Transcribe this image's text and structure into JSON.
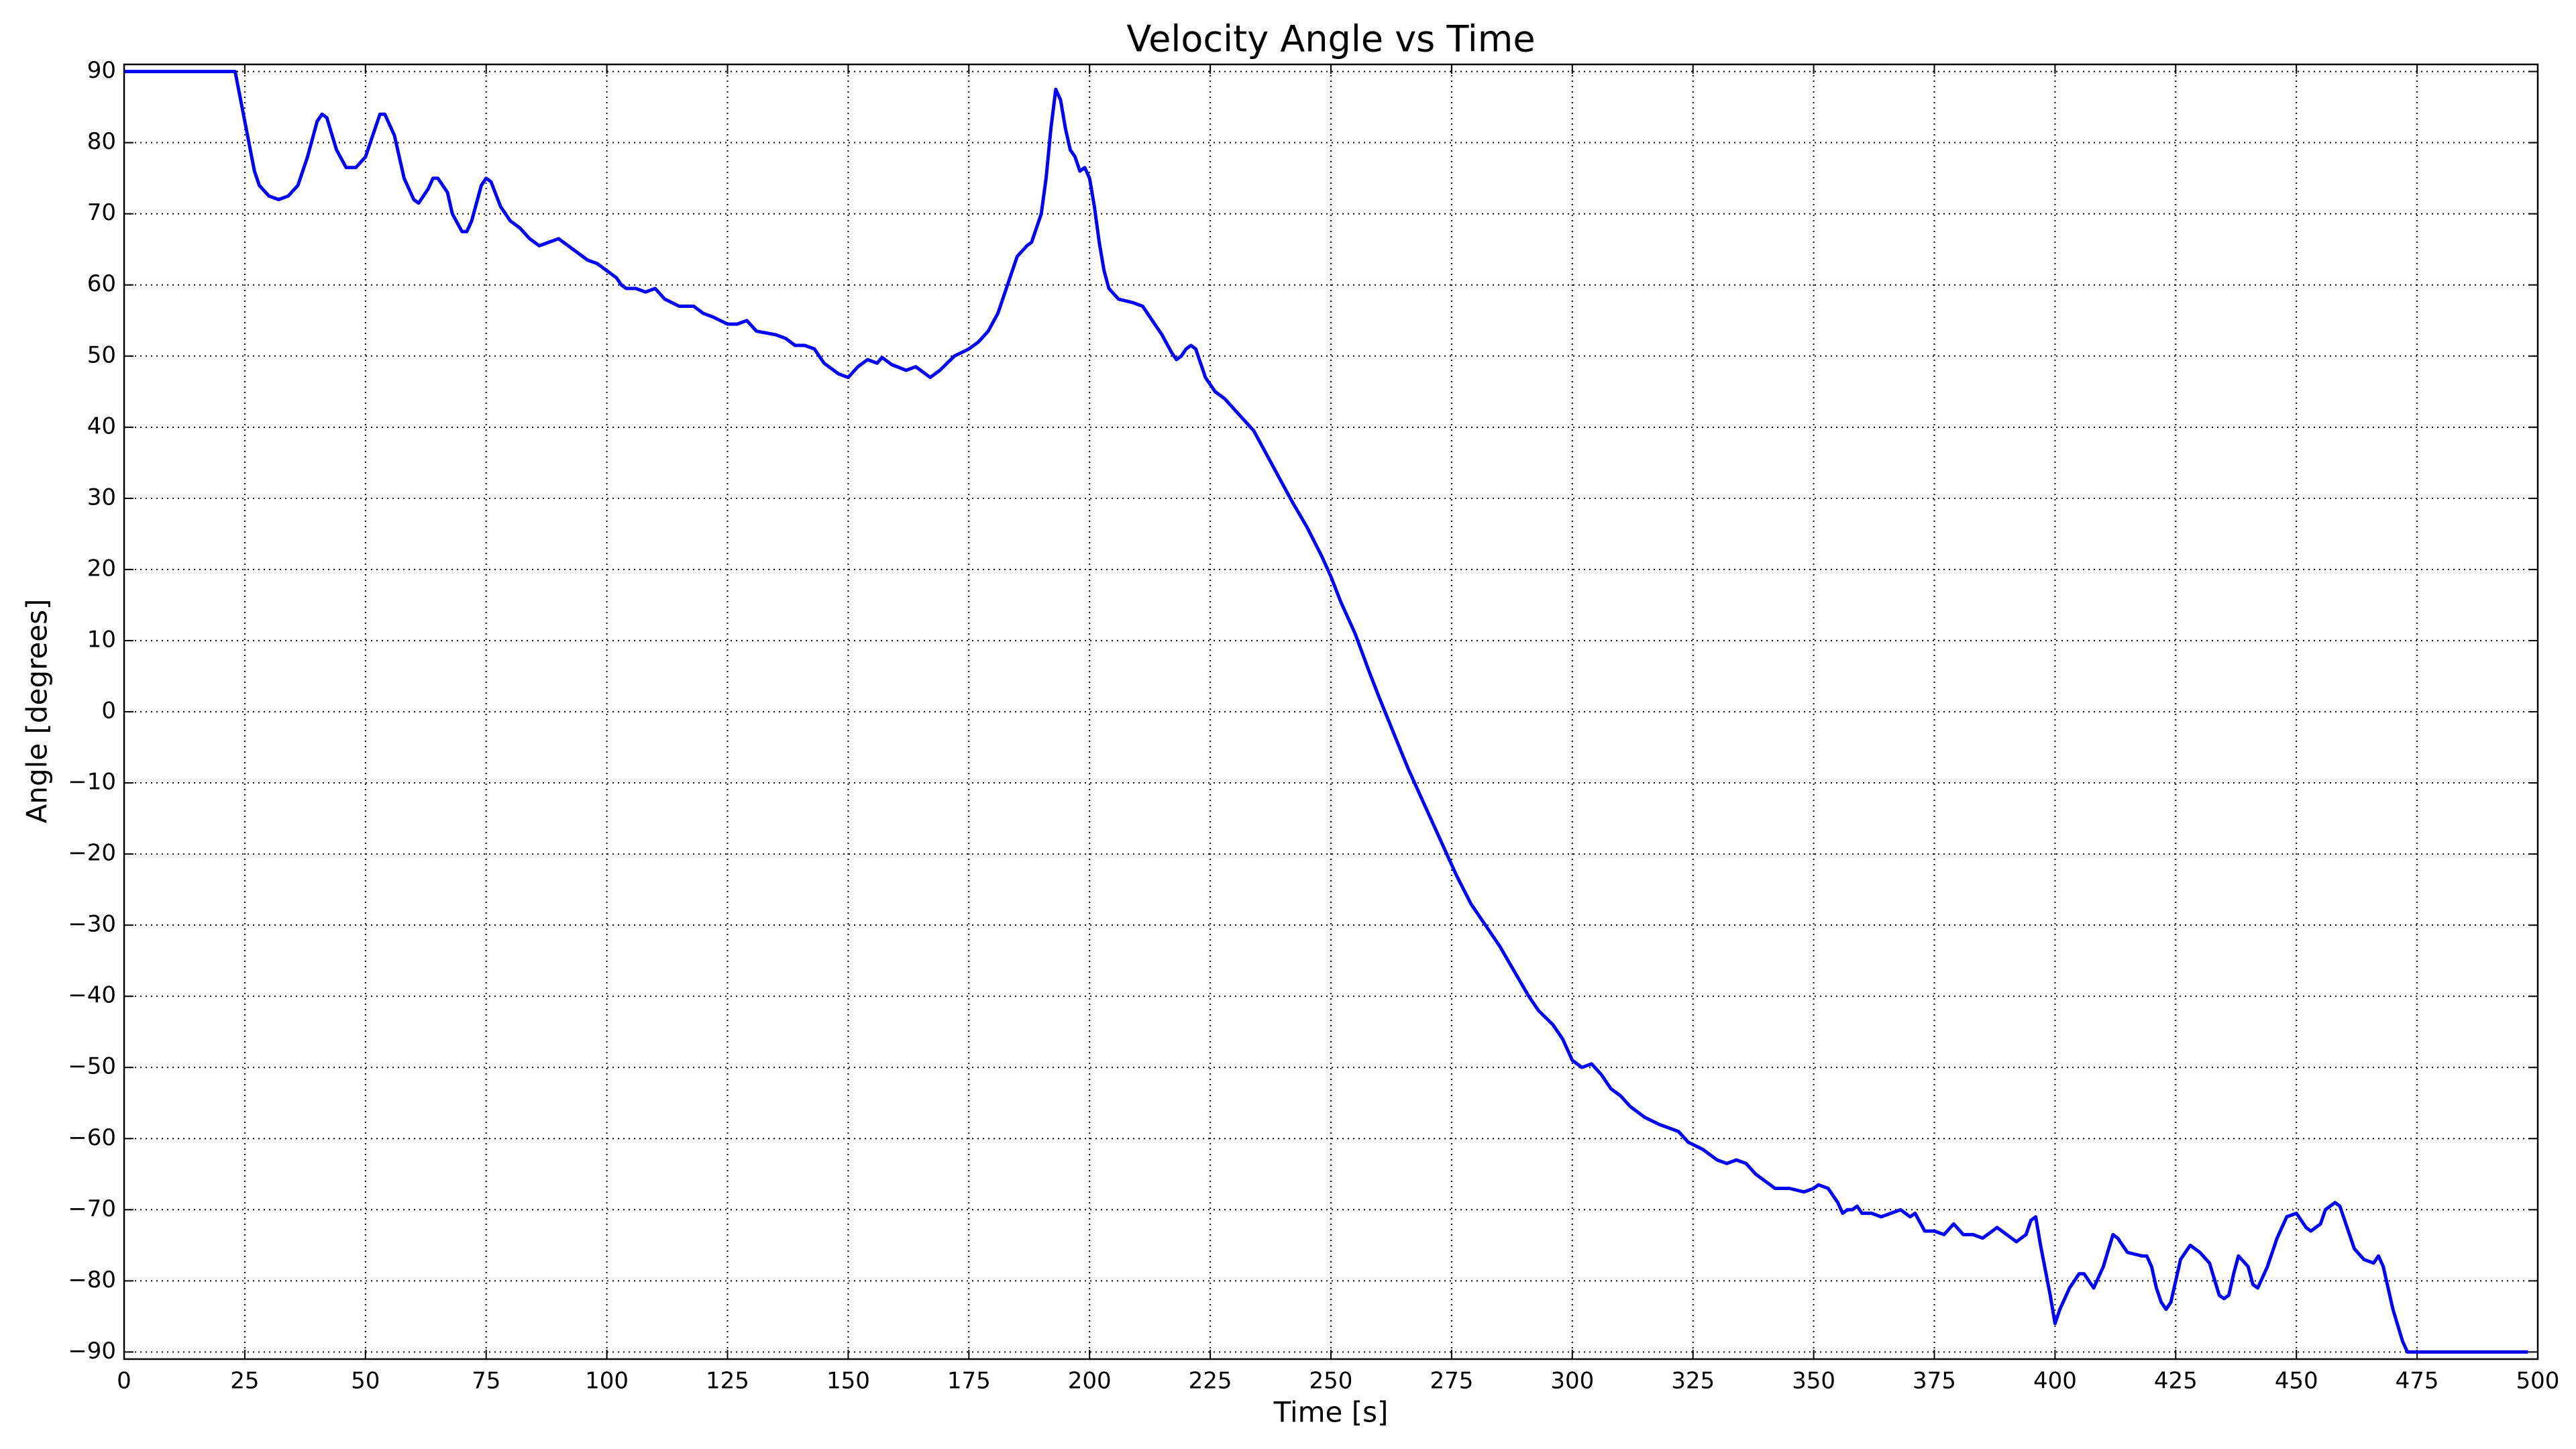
{
  "chart_data": {
    "type": "line",
    "title": "Velocity Angle vs Time",
    "x_label": "Time [s]",
    "y_label": "Angle [degrees]",
    "color": "#0000ff",
    "grid": true,
    "xlim": [
      0,
      500
    ],
    "ylim": [
      -91,
      91
    ],
    "xticks": [
      0,
      25,
      50,
      75,
      100,
      125,
      150,
      175,
      200,
      225,
      250,
      275,
      300,
      325,
      350,
      375,
      400,
      425,
      450,
      475,
      500
    ],
    "yticks": [
      {
        "value": -90,
        "label": "−90"
      },
      {
        "value": -80,
        "label": "−80"
      },
      {
        "value": -70,
        "label": "−70"
      },
      {
        "value": -60,
        "label": "−60"
      },
      {
        "value": -50,
        "label": "−50"
      },
      {
        "value": -40,
        "label": "−40"
      },
      {
        "value": -30,
        "label": "−30"
      },
      {
        "value": -20,
        "label": "−20"
      },
      {
        "value": -10,
        "label": "−10"
      },
      0,
      10,
      20,
      30,
      40,
      50,
      60,
      70,
      80,
      90
    ],
    "x": [
      0,
      23,
      25,
      27,
      28,
      30,
      32,
      34,
      36,
      38,
      40,
      41,
      42,
      44,
      46,
      48,
      50,
      52,
      53,
      54,
      56,
      58,
      60,
      61,
      63,
      64,
      65,
      67,
      68,
      70,
      71,
      72,
      74,
      75,
      76,
      78,
      80,
      82,
      84,
      86,
      88,
      90,
      92,
      94,
      96,
      98,
      100,
      102,
      103,
      104,
      106,
      108,
      110,
      112,
      115,
      118,
      120,
      122,
      125,
      127,
      129,
      131,
      135,
      137,
      139,
      141,
      143,
      145,
      148,
      150,
      152,
      154,
      156,
      157,
      159,
      162,
      164,
      167,
      169,
      172,
      175,
      177,
      179,
      181,
      183,
      185,
      187,
      188,
      190,
      191,
      192,
      193,
      194,
      195,
      196,
      197,
      198,
      199,
      200,
      201,
      202,
      203,
      204,
      206,
      209,
      211,
      213,
      215,
      217,
      218,
      219,
      220,
      221,
      222,
      223,
      224,
      226,
      228,
      230,
      232,
      234,
      236,
      238,
      240,
      242,
      245,
      248,
      250,
      252,
      255,
      258,
      260,
      263,
      266,
      270,
      273,
      276,
      279,
      282,
      285,
      288,
      291,
      293,
      296,
      298,
      300,
      302,
      304,
      306,
      308,
      310,
      312,
      315,
      318,
      320,
      322,
      324,
      327,
      330,
      332,
      334,
      336,
      338,
      340,
      342,
      345,
      348,
      350,
      351,
      353,
      355,
      356,
      357,
      358,
      359,
      360,
      362,
      364,
      366,
      368,
      370,
      371,
      373,
      375,
      377,
      379,
      381,
      383,
      385,
      387,
      388,
      390,
      392,
      394,
      395,
      396,
      397,
      399,
      400,
      401,
      403,
      405,
      406,
      408,
      410,
      412,
      413,
      415,
      418,
      419,
      420,
      421,
      422,
      423,
      424,
      426,
      428,
      430,
      432,
      434,
      435,
      436,
      437,
      438,
      440,
      441,
      442,
      444,
      446,
      448,
      450,
      452,
      453,
      455,
      456,
      458,
      459,
      460,
      462,
      464,
      466,
      467,
      468,
      470,
      472,
      473,
      498
    ],
    "values": [
      90,
      90,
      83,
      76,
      74,
      72.5,
      72,
      72.5,
      74,
      78,
      83,
      84,
      83.5,
      79,
      76.5,
      76.5,
      78,
      82,
      84,
      84,
      81,
      75,
      72,
      71.5,
      73.5,
      75,
      75,
      73,
      70,
      67.5,
      67.5,
      69,
      74,
      75,
      74.5,
      71,
      69,
      68,
      66.5,
      65.5,
      66,
      66.5,
      65.5,
      64.5,
      63.5,
      63,
      62,
      61,
      60,
      59.5,
      59.5,
      59,
      59.5,
      58,
      57,
      57,
      56,
      55.5,
      54.5,
      54.5,
      55,
      53.5,
      53,
      52.5,
      51.5,
      51.5,
      51,
      49,
      47.5,
      47,
      48.5,
      49.5,
      49,
      49.8,
      48.8,
      48,
      48.5,
      47,
      48,
      50,
      51,
      52,
      53.5,
      56,
      60,
      64,
      65.5,
      66,
      70,
      75,
      82,
      87.5,
      86,
      82,
      79,
      78,
      76,
      76.5,
      75,
      71,
      66,
      62,
      59.5,
      58,
      57.5,
      57,
      55,
      53,
      50.5,
      49.5,
      50,
      51,
      51.5,
      51,
      49,
      47,
      45,
      44,
      42.5,
      41,
      39.5,
      37,
      34.5,
      32,
      29.5,
      26,
      22,
      19,
      15.5,
      11,
      5.5,
      2,
      -3,
      -8,
      -14,
      -18.5,
      -23,
      -27,
      -30,
      -33,
      -36.5,
      -40,
      -42,
      -44,
      -46,
      -49,
      -50,
      -49.5,
      -51,
      -53,
      -54,
      -55.5,
      -57,
      -58,
      -58.5,
      -59,
      -60.5,
      -61.5,
      -63,
      -63.5,
      -63,
      -63.5,
      -65,
      -66,
      -67,
      -67,
      -67.5,
      -67,
      -66.5,
      -67,
      -69,
      -70.5,
      -70,
      -70,
      -69.5,
      -70.5,
      -70.5,
      -71,
      -70.5,
      -70,
      -71,
      -70.5,
      -73,
      -73,
      -73.5,
      -72,
      -73.5,
      -73.5,
      -74,
      -73,
      -72.5,
      -73.5,
      -74.5,
      -73.5,
      -71.5,
      -71,
      -75,
      -82,
      -86,
      -84,
      -81,
      -79,
      -79,
      -81,
      -78,
      -73.5,
      -74,
      -76,
      -76.5,
      -76.5,
      -78,
      -81,
      -83,
      -84,
      -83,
      -77,
      -75,
      -76,
      -77.5,
      -82,
      -82.5,
      -82,
      -79,
      -76.5,
      -78,
      -80.5,
      -81,
      -78,
      -74,
      -71,
      -70.5,
      -72.5,
      -73,
      -72,
      -70,
      -69,
      -69.5,
      -71.5,
      -75.5,
      -77,
      -77.5,
      -76.5,
      -78,
      -84,
      -88.5,
      -90,
      -90
    ]
  }
}
